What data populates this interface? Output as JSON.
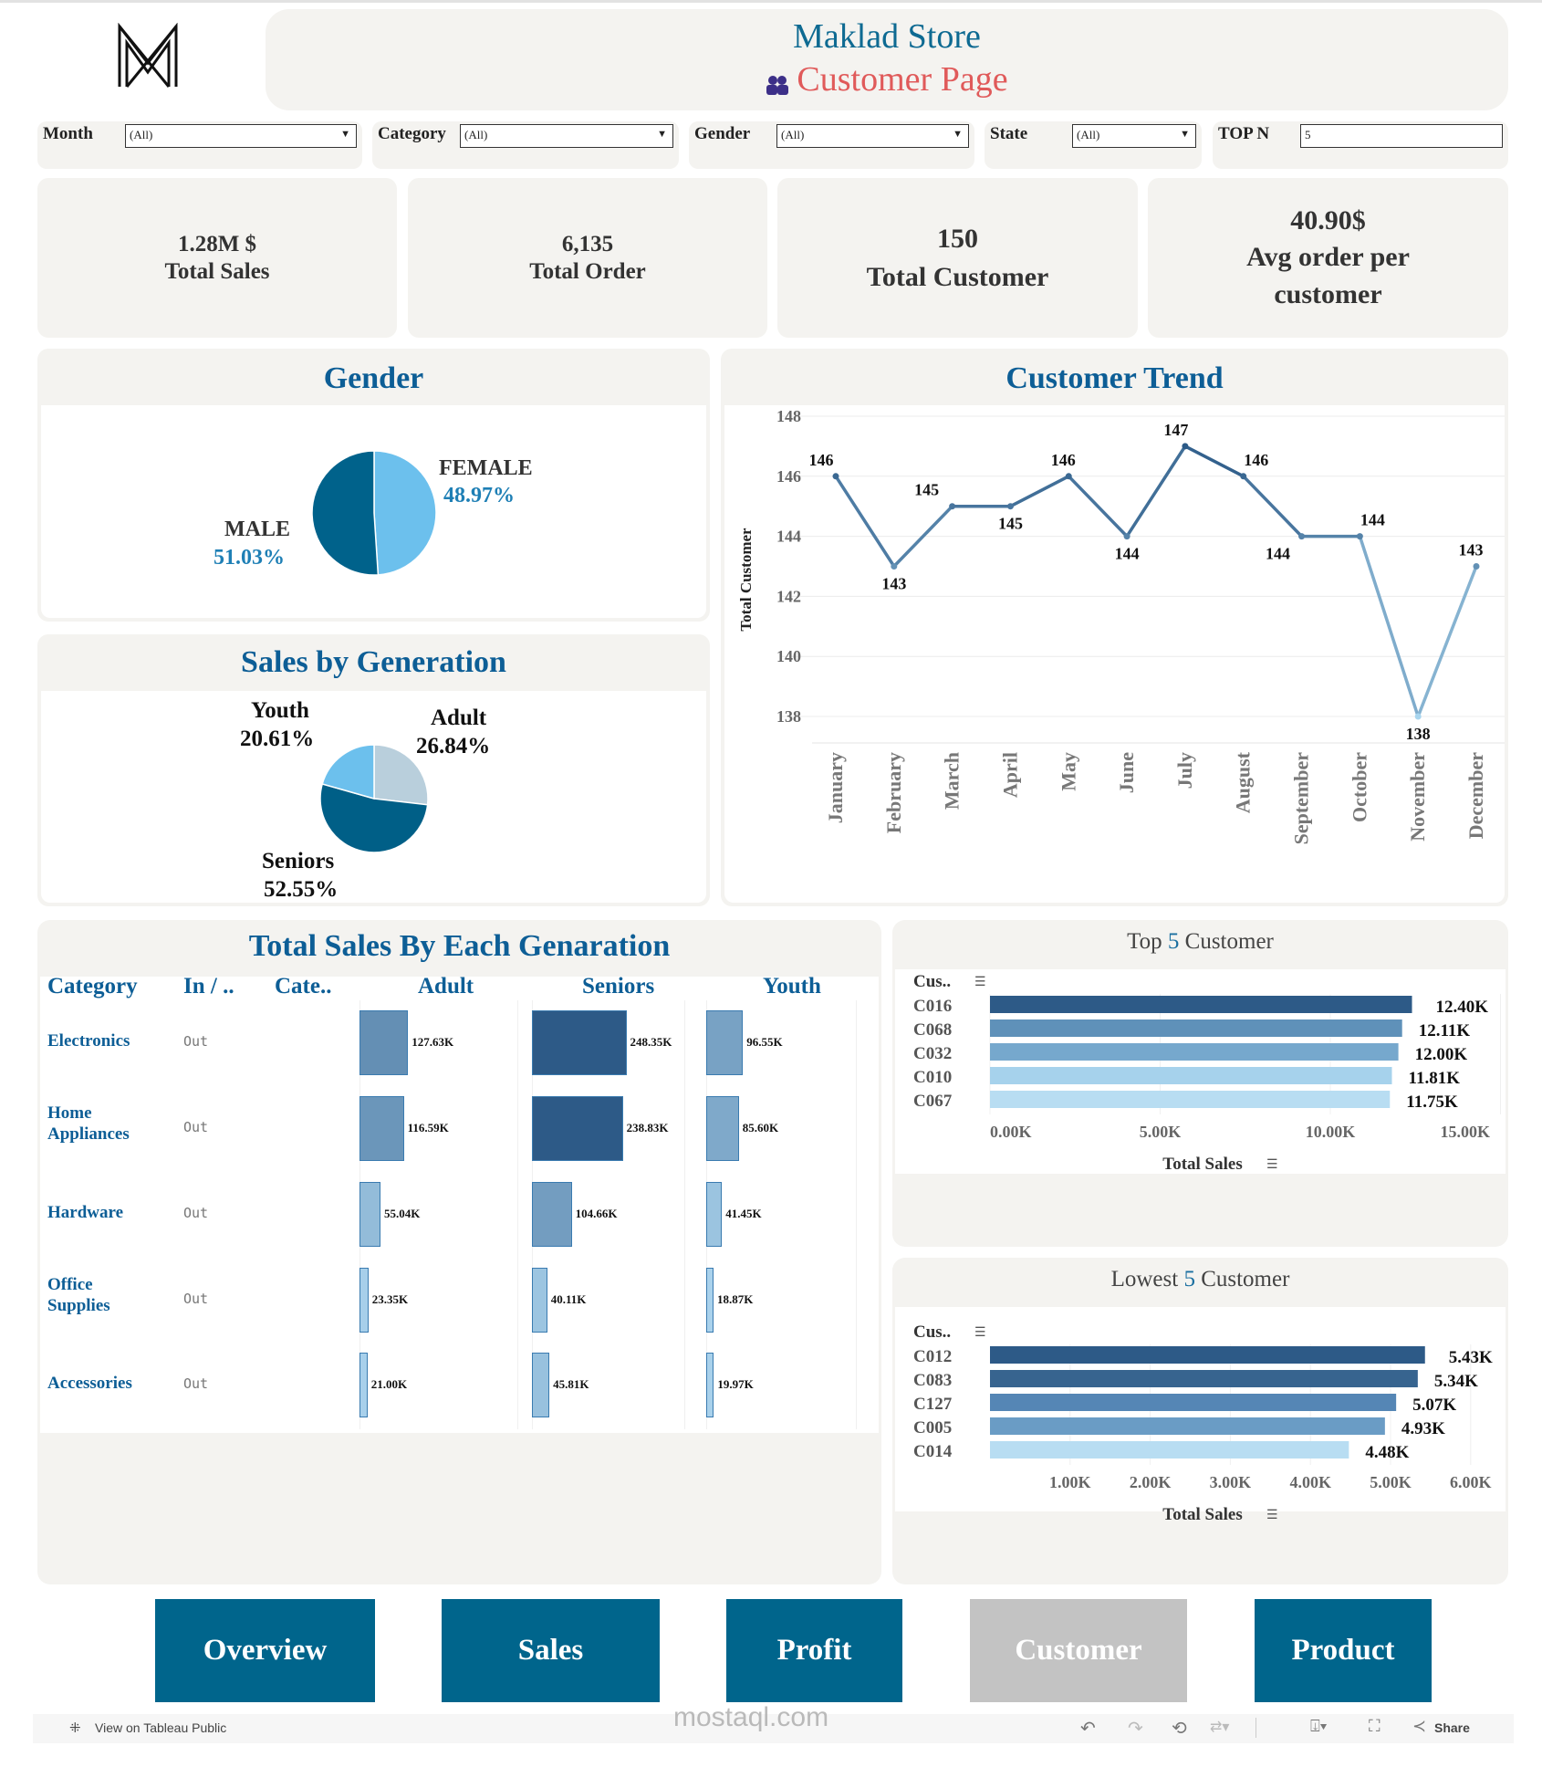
{
  "header": {
    "title": "Maklad Store",
    "subtitle": "Customer Page",
    "logo_text": "M",
    "subtitle_icon": "people-icon"
  },
  "filters": [
    {
      "label": "Month",
      "value": "(All)"
    },
    {
      "label": "Category",
      "value": "(All)"
    },
    {
      "label": "Gender",
      "value": "(All)"
    },
    {
      "label": "State",
      "value": "(All)"
    },
    {
      "label": "TOP N",
      "value": "5"
    }
  ],
  "kpis": [
    {
      "value": "1.28M $",
      "label": "Total Sales"
    },
    {
      "value": "6,135",
      "label": "Total Order"
    },
    {
      "value": "150",
      "label": "Total Customer"
    },
    {
      "value": "40.90$",
      "label": "Avg order per customer"
    }
  ],
  "chart_data": [
    {
      "type": "pie",
      "title": "Gender",
      "slices": [
        {
          "name": "FEMALE",
          "value": 48.97,
          "label": "48.97%",
          "color": "#6cc0ed"
        },
        {
          "name": "MALE",
          "value": 51.03,
          "label": "51.03%",
          "color": "#00628b"
        }
      ]
    },
    {
      "type": "pie",
      "title": "Sales by Generation",
      "slices": [
        {
          "name": "Adult",
          "value": 26.84,
          "label": "26.84%",
          "color": "#b9cfdc"
        },
        {
          "name": "Seniors",
          "value": 52.55,
          "label": "52.55%",
          "color": "#005f87"
        },
        {
          "name": "Youth",
          "value": 20.61,
          "label": "20.61%",
          "color": "#6cc0ed"
        }
      ]
    },
    {
      "type": "line",
      "title": "Customer Trend",
      "ylabel": "Total Customer",
      "ylim": [
        137,
        148
      ],
      "yticks": [
        138,
        140,
        142,
        144,
        146,
        148
      ],
      "grid": true,
      "categories": [
        "January",
        "February",
        "March",
        "April",
        "May",
        "June",
        "July",
        "August",
        "September",
        "October",
        "November",
        "December"
      ],
      "values": [
        146,
        143,
        145,
        145,
        146,
        144,
        147,
        146,
        144,
        144,
        138,
        143
      ]
    },
    {
      "type": "table",
      "title": "Total Sales By Each Genaration",
      "headers": [
        "Category",
        "In / ..",
        "Cate..",
        "Adult",
        "Seniors",
        "Youth"
      ],
      "rows": [
        {
          "category": "Electronics",
          "inout": "Out",
          "values": [
            127.63,
            248.35,
            96.55
          ],
          "labels": [
            "127.63K",
            "248.35K",
            "96.55K"
          ]
        },
        {
          "category": "Home Appliances",
          "inout": "Out",
          "values": [
            116.59,
            238.83,
            85.6
          ],
          "labels": [
            "116.59K",
            "238.83K",
            "85.60K"
          ]
        },
        {
          "category": "Hardware",
          "inout": "Out",
          "values": [
            55.04,
            104.66,
            41.45
          ],
          "labels": [
            "55.04K",
            "104.66K",
            "41.45K"
          ]
        },
        {
          "category": "Office Supplies",
          "inout": "Out",
          "values": [
            23.35,
            40.11,
            18.87
          ],
          "labels": [
            "23.35K",
            "40.11K",
            "18.87K"
          ]
        },
        {
          "category": "Accessories",
          "inout": "Out",
          "values": [
            21.0,
            45.81,
            19.97
          ],
          "labels": [
            "21.00K",
            "45.81K",
            "19.97K"
          ]
        }
      ]
    },
    {
      "type": "bar",
      "title_pre": "Top ",
      "title_n": "5",
      "title_post": " Customer",
      "ylabel": "Cus..",
      "xlabel": "Total Sales",
      "xlim": [
        0,
        15
      ],
      "xticks": [
        "0.00K",
        "5.00K",
        "10.00K",
        "15.00K"
      ],
      "xtick_values": [
        0,
        5,
        10,
        15
      ],
      "categories": [
        "C016",
        "C068",
        "C032",
        "C010",
        "C067"
      ],
      "values": [
        12.4,
        12.11,
        12.0,
        11.81,
        11.75
      ],
      "labels": [
        "12.40K",
        "12.11K",
        "12.00K",
        "11.81K",
        "11.75K"
      ],
      "colors": [
        "#2d5a87",
        "#5f91b9",
        "#76a8cd",
        "#a6d2ec",
        "#b8ddf2"
      ]
    },
    {
      "type": "bar",
      "title_pre": "Lowest ",
      "title_n": "5",
      "title_post": " Customer",
      "ylabel": "Cus..",
      "xlabel": "Total Sales",
      "xlim": [
        0,
        6
      ],
      "xticks": [
        "1.00K",
        "2.00K",
        "3.00K",
        "4.00K",
        "5.00K",
        "6.00K"
      ],
      "xtick_values": [
        1,
        2,
        3,
        4,
        5,
        6
      ],
      "categories": [
        "C012",
        "C083",
        "C127",
        "C005",
        "C014"
      ],
      "values": [
        5.43,
        5.34,
        5.07,
        4.93,
        4.48
      ],
      "labels": [
        "5.43K",
        "5.34K",
        "5.07K",
        "4.93K",
        "4.48K"
      ],
      "colors": [
        "#2d5a87",
        "#37648f",
        "#5586b5",
        "#6a9cc5",
        "#b8ddf2"
      ]
    }
  ],
  "nav": [
    {
      "label": "Overview",
      "active": false
    },
    {
      "label": "Sales",
      "active": false
    },
    {
      "label": "Profit",
      "active": false
    },
    {
      "label": "Customer",
      "active": true
    },
    {
      "label": "Product",
      "active": false
    }
  ],
  "colors": {
    "nav": "#00658c",
    "nav_active": "#c3c3c3",
    "title_blue": "#0d5e96",
    "subtitle_red": "#e05a5a"
  },
  "watermark": "mostaql.com",
  "footer": {
    "view_link": "View on Tableau Public",
    "share": "Share"
  }
}
